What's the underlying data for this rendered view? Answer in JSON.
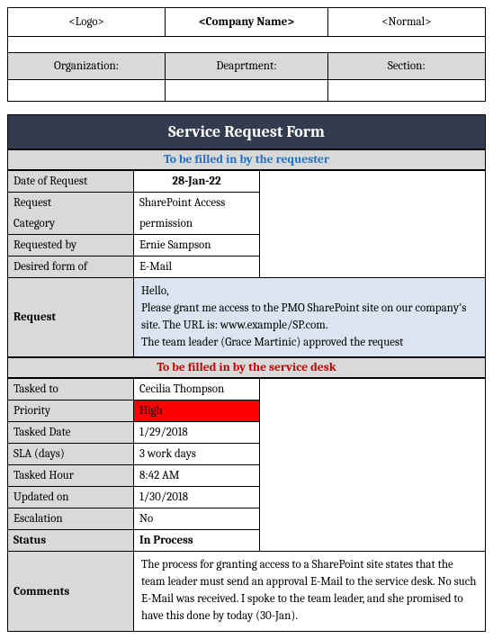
{
  "header": {
    "logo": "<Logo>",
    "company": "<Company Name>",
    "normal": "<Normal>"
  },
  "org": {
    "organization_label": "Organization:",
    "department_label": "Deaprtment:",
    "section_label": "Section:"
  },
  "form_title": "Service Request Form",
  "requester_section_title": "To be filled in by the requester",
  "servicedesk_section_title": "To be filled in by the service desk",
  "requester": {
    "date_label": "Date of Request",
    "date_value": "28-Jan-22",
    "category_label_1": "Request",
    "category_label_2": "Category",
    "category_value_1": "SharePoint Access",
    "category_value_2": "permission",
    "requested_by_label": "Requested by",
    "requested_by_value": "Ernie Sampson",
    "desired_form_label": "Desired form of",
    "desired_form_value": "E-Mail",
    "request_label": "Request",
    "request_text": "Hello,\nPlease grant me access to the PMO SharePoint site on our company's site. The URL is: www.example/SP.com.\nThe team leader (Grace Martinic) approved the request"
  },
  "servicedesk": {
    "tasked_to_label": "Tasked to",
    "tasked_to_value": "Cecilia Thompson",
    "priority_label": "Priority",
    "priority_value": "High",
    "tasked_date_label": "Tasked Date",
    "tasked_date_value": "1/29/2018",
    "sla_label": "SLA (days)",
    "sla_value": "3 work days",
    "tasked_hour_label": "Tasked Hour",
    "tasked_hour_value": "8:42 AM",
    "updated_label": "Updated on",
    "updated_value": "1/30/2018",
    "escalation_label": "Escalation",
    "escalation_value": "No",
    "status_label": "Status",
    "status_value": "In Process",
    "comments_label": "Comments",
    "comments_value": "The process for granting access to a SharePoint site states that the team leader must send an approval E-Mail to the service desk. No such E-Mail was received. I spoke to the team leader, and she promised to have this done by today (30-Jan)."
  },
  "styling": {
    "title_bg": "#333c4e",
    "header_gray": "#d9d9d9",
    "request_bg": "#dbe5f1",
    "priority_bg": "#ff0000",
    "blue": "#1f6fc4",
    "red": "#c00000"
  }
}
